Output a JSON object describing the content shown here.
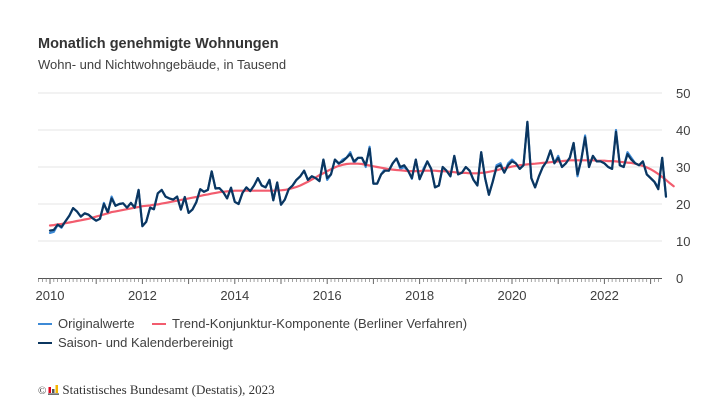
{
  "chart_data": {
    "type": "line",
    "title": "Monatlich genehmigte Wohnungen",
    "subtitle": "Wohn- und Nichtwohngebäude, in Tausend",
    "xlabel": "",
    "ylabel": "",
    "x_start": "2010-01",
    "x_frequency": "monthly",
    "x_ticks": [
      2010,
      2012,
      2014,
      2016,
      2018,
      2020,
      2022
    ],
    "x_tick_labels": [
      "2010",
      "2012",
      "2014",
      "2016",
      "2018",
      "2020",
      "2022"
    ],
    "xlim": [
      2009.8,
      2023.3
    ],
    "ylim": [
      0,
      50
    ],
    "y_ticks": [
      0,
      10,
      20,
      30,
      40,
      50
    ],
    "y_tick_labels": [
      "0",
      "10",
      "20",
      "30",
      "40",
      "50"
    ],
    "y_axis_side": "right",
    "grid": true,
    "legend_position": "bottom-left",
    "series": [
      {
        "name": "Originalwerte",
        "color": "#3d8ad6",
        "values": [
          12.2,
          12.5,
          14.4,
          13.6,
          15.3,
          16.8,
          18.9,
          18.0,
          16.6,
          17.5,
          17.1,
          16.2,
          15.5,
          16.0,
          20.3,
          17.5,
          22.0,
          19.5,
          20.0,
          20.2,
          19.0,
          20.3,
          19.0,
          23.8,
          14.0,
          15.2,
          19.0,
          18.6,
          22.9,
          23.8,
          22.0,
          21.5,
          21.2,
          22.0,
          18.5,
          21.9,
          17.6,
          18.5,
          20.5,
          24.0,
          23.3,
          23.8,
          28.8,
          24.2,
          24.3,
          23.2,
          21.5,
          24.4,
          20.6,
          20.0,
          23.0,
          24.5,
          23.5,
          25.0,
          27.0,
          25.0,
          24.5,
          26.5,
          21.0,
          25.8,
          19.8,
          21.2,
          24.0,
          25.0,
          26.5,
          27.5,
          29.0,
          26.5,
          27.5,
          27.0,
          26.2,
          32.0,
          26.5,
          28.0,
          32.0,
          30.8,
          32.0,
          32.5,
          34.0,
          31.0,
          32.5,
          32.5,
          30.0,
          35.5,
          25.5,
          25.5,
          28.0,
          29.5,
          29.0,
          31.0,
          32.3,
          29.5,
          30.0,
          29.0,
          26.8,
          32.0,
          26.7,
          29.5,
          31.5,
          29.5,
          24.5,
          25.0,
          30.0,
          29.0,
          27.5,
          33.0,
          28.0,
          28.5,
          30.0,
          29.0,
          26.5,
          25.0,
          34.0,
          27.0,
          22.5,
          26.0,
          30.5,
          31.0,
          28.5,
          31.0,
          32.0,
          31.0,
          29.5,
          30.5,
          42.2,
          27.0,
          24.5,
          27.5,
          30.0,
          31.5,
          34.5,
          31.0,
          33.0,
          30.0,
          31.0,
          32.5,
          36.5,
          27.5,
          32.0,
          38.5,
          30.0,
          33.0,
          31.5,
          31.5,
          31.0,
          30.0,
          29.5,
          40.0,
          30.5,
          30.0,
          34.0,
          32.5,
          31.0,
          30.5,
          31.5,
          28.0,
          27.0,
          26.0,
          24.5,
          32.5,
          22.0
        ]
      },
      {
        "name": "Trend-Konjunktur-Komponente (Berliner Verfahren)",
        "color": "#f25c6e",
        "values": [
          14.2,
          14.3,
          14.5,
          14.6,
          14.8,
          15.0,
          15.2,
          15.4,
          15.6,
          15.8,
          16.0,
          16.3,
          16.6,
          16.9,
          17.2,
          17.5,
          17.8,
          18.0,
          18.2,
          18.4,
          18.6,
          18.8,
          19.0,
          19.2,
          19.4,
          19.5,
          19.6,
          19.8,
          19.9,
          20.1,
          20.3,
          20.5,
          20.7,
          20.9,
          21.1,
          21.3,
          21.5,
          21.7,
          21.9,
          22.2,
          22.4,
          22.6,
          22.8,
          23.0,
          23.2,
          23.3,
          23.4,
          23.5,
          23.6,
          23.6,
          23.6,
          23.6,
          23.6,
          23.6,
          23.6,
          23.6,
          23.6,
          23.6,
          23.6,
          23.7,
          23.7,
          23.8,
          24.0,
          24.3,
          24.6,
          25.0,
          25.5,
          26.0,
          26.6,
          27.2,
          27.8,
          28.3,
          28.9,
          29.4,
          29.9,
          30.3,
          30.6,
          30.8,
          30.9,
          30.9,
          30.9,
          30.8,
          30.6,
          30.4,
          30.2,
          30.0,
          29.8,
          29.6,
          29.4,
          29.3,
          29.2,
          29.1,
          29.0,
          28.9,
          28.9,
          28.9,
          28.9,
          29.0,
          29.0,
          29.0,
          29.0,
          28.9,
          28.9,
          28.8,
          28.7,
          28.6,
          28.5,
          28.4,
          28.4,
          28.3,
          28.3,
          28.3,
          28.4,
          28.5,
          28.7,
          28.9,
          29.1,
          29.4,
          29.7,
          29.9,
          30.1,
          30.3,
          30.5,
          30.6,
          30.7,
          30.8,
          30.9,
          31.0,
          31.1,
          31.2,
          31.3,
          31.4,
          31.5,
          31.6,
          31.7,
          31.8,
          31.8,
          31.8,
          31.8,
          31.8,
          31.8,
          31.8,
          31.7,
          31.7,
          31.7,
          31.6,
          31.6,
          31.5,
          31.4,
          31.3,
          31.2,
          31.1,
          30.9,
          30.6,
          30.3,
          29.9,
          29.4,
          28.8,
          28.1,
          27.3,
          26.5,
          25.6,
          24.8
        ]
      },
      {
        "name": "Saison- und Kalenderbereinigt",
        "color": "#0b3660",
        "values": [
          12.8,
          13.0,
          14.4,
          13.8,
          15.3,
          16.8,
          18.9,
          18.0,
          16.6,
          17.5,
          17.1,
          16.2,
          15.5,
          16.0,
          20.0,
          17.8,
          21.5,
          19.5,
          20.0,
          20.2,
          19.0,
          20.3,
          19.0,
          23.8,
          14.0,
          15.2,
          19.0,
          18.6,
          22.9,
          23.8,
          22.0,
          21.5,
          21.2,
          22.0,
          18.5,
          21.9,
          17.6,
          18.5,
          20.5,
          24.0,
          23.3,
          23.8,
          28.8,
          24.2,
          24.3,
          23.2,
          21.5,
          24.4,
          20.6,
          20.0,
          23.0,
          24.5,
          23.5,
          25.0,
          27.0,
          25.0,
          24.5,
          26.5,
          21.0,
          25.8,
          19.8,
          21.2,
          24.0,
          25.0,
          26.5,
          27.5,
          29.0,
          26.5,
          27.5,
          27.0,
          26.2,
          32.0,
          27.0,
          28.0,
          32.0,
          31.0,
          31.5,
          32.5,
          33.5,
          31.5,
          32.5,
          32.5,
          30.5,
          35.0,
          25.5,
          25.5,
          28.0,
          29.0,
          29.0,
          31.0,
          32.3,
          30.0,
          30.5,
          29.0,
          27.0,
          32.0,
          26.7,
          29.0,
          31.5,
          29.5,
          24.5,
          25.0,
          30.0,
          29.0,
          27.5,
          33.0,
          28.0,
          28.5,
          30.0,
          29.0,
          26.5,
          25.0,
          34.0,
          27.0,
          22.5,
          26.0,
          30.0,
          30.5,
          28.5,
          30.5,
          31.5,
          31.0,
          29.5,
          30.5,
          42.2,
          27.0,
          24.5,
          27.5,
          30.0,
          31.5,
          34.5,
          31.0,
          32.5,
          30.0,
          31.0,
          32.5,
          36.5,
          28.0,
          32.0,
          38.0,
          30.0,
          33.0,
          31.5,
          31.5,
          31.0,
          30.0,
          29.5,
          39.5,
          30.5,
          30.0,
          33.5,
          32.0,
          31.0,
          30.5,
          31.5,
          28.0,
          27.0,
          26.0,
          24.0,
          32.5,
          22.0
        ]
      }
    ]
  },
  "legend": {
    "items": [
      {
        "label": "Originalwerte",
        "color": "#3d8ad6"
      },
      {
        "label": "Trend-Konjunktur-Komponente (Berliner Verfahren)",
        "color": "#f25c6e"
      },
      {
        "label": "Saison- und Kalenderbereinigt",
        "color": "#0b3660"
      }
    ]
  },
  "footer": {
    "copyright_symbol": "©",
    "source": "Statistisches Bundesamt (Destatis), 2023",
    "logo_icon": "destatis-logo-icon"
  }
}
